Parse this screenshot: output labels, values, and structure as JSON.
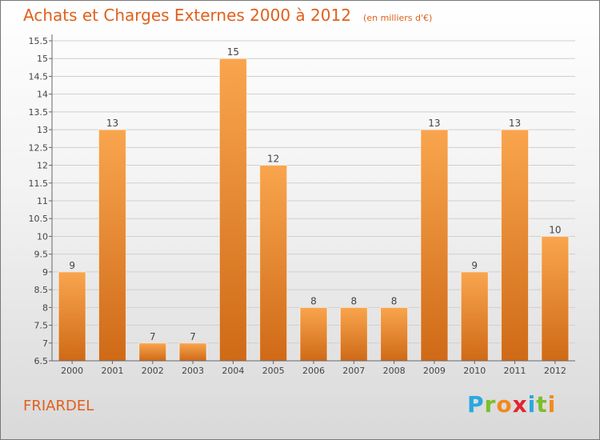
{
  "header": {
    "title": "Achats et Charges Externes 2000 à 2012",
    "unit_note": "(en milliers d'€)"
  },
  "commune": "FRIARDEL",
  "logo": {
    "letters": [
      "P",
      "r",
      "o",
      "x",
      "i",
      "t",
      "i"
    ],
    "colors": [
      "#29a8e0",
      "#7bbf2a",
      "#f28a1e",
      "#e3262e",
      "#29a8e0",
      "#7bbf2a",
      "#f28a1e"
    ]
  },
  "colors": {
    "bar_light": "#f9a54e",
    "bar_dark": "#cf6a17",
    "grid": "#cfcfcf",
    "title": "#e0601c"
  },
  "chart_data": {
    "type": "bar",
    "categories": [
      "2000",
      "2001",
      "2002",
      "2003",
      "2004",
      "2005",
      "2006",
      "2007",
      "2008",
      "2009",
      "2010",
      "2011",
      "2012"
    ],
    "values": [
      9,
      13,
      7,
      7,
      15,
      12,
      8,
      8,
      8,
      13,
      9,
      13,
      10
    ],
    "value_labels": [
      "9",
      "13",
      "7",
      "7",
      "15",
      "12",
      "8",
      "8",
      "8",
      "13",
      "9",
      "13",
      "10"
    ],
    "yticks": [
      "6.5",
      "7",
      "7.5",
      "8",
      "8.5",
      "9",
      "9.5",
      "10",
      "10.5",
      "11",
      "11.5",
      "12",
      "12.5",
      "13",
      "13.5",
      "14",
      "14.5",
      "15",
      "15.5"
    ],
    "ylim": [
      6.5,
      15.5
    ],
    "grid": true
  }
}
